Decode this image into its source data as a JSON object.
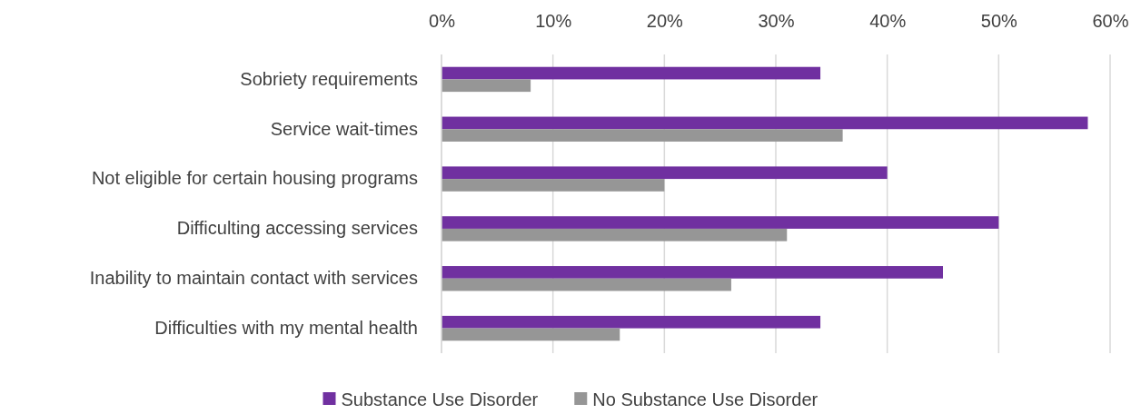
{
  "chart_data": {
    "type": "bar",
    "orientation": "horizontal",
    "categories": [
      "Sobriety requirements",
      "Service wait-times",
      "Not eligible for certain housing programs",
      "Difficulting accessing services",
      "Inability to maintain contact with services",
      "Difficulties with my mental health"
    ],
    "series": [
      {
        "name": "Substance Use Disorder",
        "color": "#7030a0",
        "values": [
          34,
          58,
          40,
          50,
          45,
          34
        ]
      },
      {
        "name": "No Substance Use Disorder",
        "color": "#969696",
        "values": [
          8,
          36,
          20,
          31,
          26,
          16
        ]
      }
    ],
    "xlim": [
      0,
      60
    ],
    "xticks": [
      {
        "value": 0,
        "label": "0%"
      },
      {
        "value": 10,
        "label": "10%"
      },
      {
        "value": 20,
        "label": "20%"
      },
      {
        "value": 30,
        "label": "30%"
      },
      {
        "value": 40,
        "label": "40%"
      },
      {
        "value": 50,
        "label": "50%"
      },
      {
        "value": 60,
        "label": "60%"
      }
    ],
    "grid": "x",
    "legend": "bottom"
  }
}
